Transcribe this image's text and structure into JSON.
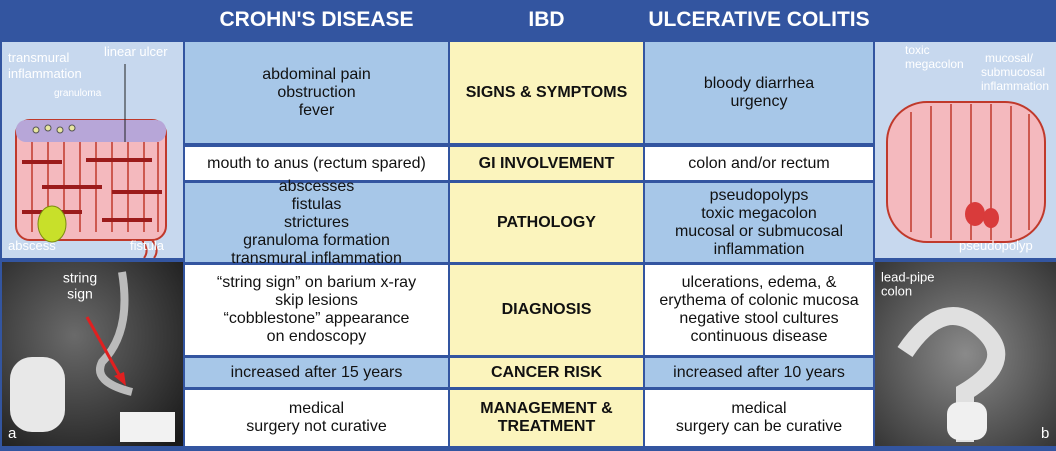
{
  "header": {
    "crohns": "CROHN'S DISEASE",
    "ibd": "IBD",
    "uc": "ULCERATIVE COLITIS"
  },
  "rows": [
    {
      "label": [
        "SIGNS & SYMPTOMS"
      ],
      "crohns": [
        "abdominal pain",
        "obstruction",
        "fever"
      ],
      "uc": [
        "bloody diarrhea",
        "urgency"
      ]
    },
    {
      "label": [
        "GI INVOLVEMENT"
      ],
      "crohns": [
        "mouth to anus (rectum spared)"
      ],
      "uc": [
        "colon and/or rectum"
      ]
    },
    {
      "label": [
        "PATHOLOGY"
      ],
      "crohns": [
        "abscesses",
        "fistulas",
        "strictures",
        "granuloma formation",
        "transmural inflammation"
      ],
      "uc": [
        "pseudopolyps",
        "toxic megacolon",
        "mucosal or submucosal",
        "inflammation"
      ]
    },
    {
      "label": [
        "DIAGNOSIS"
      ],
      "crohns": [
        "“string sign” on barium x-ray",
        "skip lesions",
        "“cobblestone” appearance",
        "on endoscopy"
      ],
      "uc": [
        "ulcerations, edema, &",
        "erythema of colonic mucosa",
        "negative stool cultures",
        "continuous disease"
      ]
    },
    {
      "label": [
        "CANCER RISK"
      ],
      "crohns": [
        "increased after 15 years"
      ],
      "uc": [
        "increased after 10 years"
      ]
    },
    {
      "label": [
        "MANAGEMENT &",
        "TREATMENT"
      ],
      "crohns": [
        "medical",
        "surgery not curative"
      ],
      "uc": [
        "medical",
        "surgery can be curative"
      ]
    }
  ],
  "left_illustration": {
    "transmural": [
      "transmural",
      "inflammation"
    ],
    "linear_ulcer": "linear ulcer",
    "granuloma": "granuloma",
    "abscess": "abscess",
    "fistula": "fistula"
  },
  "left_photo": {
    "string_sign": [
      "string",
      "sign"
    ],
    "panel": "a"
  },
  "right_illustration": {
    "toxic": [
      "toxic",
      "megacolon"
    ],
    "mucosal": [
      "mucosal/",
      "submucosal",
      "inflammation"
    ],
    "pseudopolyp": "pseudopolyp"
  },
  "right_photo": {
    "lead_pipe": [
      "lead-pipe",
      "colon"
    ],
    "panel": "b"
  }
}
